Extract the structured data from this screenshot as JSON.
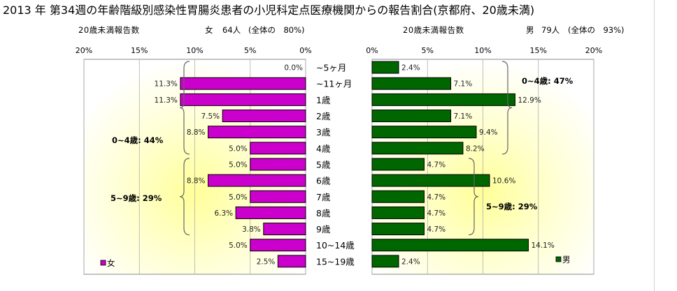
{
  "title": "2013 年 第34週の年齢階級別感染性胃腸炎患者の小児科定点医療機関からの報告割合(京都府、20歳未満)",
  "female_header": {
    "caption": "20歳未満報告数",
    "sex": "女",
    "count": "64人",
    "share": "(全体の　80%)"
  },
  "male_header": {
    "caption": "20歳未満報告数",
    "sex": "男",
    "count": "79人",
    "share": "(全体の　93%)"
  },
  "chart_data": [
    {
      "type": "bar",
      "orientation": "horizontal",
      "direction": "right-to-left",
      "categories": [
        "~5ヶ月",
        "~11ヶ月",
        "1歳",
        "2歳",
        "3歳",
        "4歳",
        "5歳",
        "6歳",
        "7歳",
        "8歳",
        "9歳",
        "10~14歳",
        "15~19歳"
      ],
      "series": [
        {
          "name": "女",
          "values": [
            0.0,
            11.3,
            11.3,
            7.5,
            8.8,
            5.0,
            5.0,
            8.8,
            5.0,
            6.3,
            3.8,
            5.0,
            2.5
          ],
          "labels": [
            "0.0%",
            "11.3%",
            "11.3%",
            "7.5%",
            "8.8%",
            "5.0%",
            "5.0%",
            "8.8%",
            "5.0%",
            "6.3%",
            "3.8%",
            "5.0%",
            "2.5%"
          ],
          "color": "#cc00cc"
        }
      ],
      "xlim": [
        0,
        20
      ],
      "ticks": [
        "20%",
        "15%",
        "10%",
        "5%",
        "0%"
      ],
      "grid": true,
      "legend": "bottom-left",
      "annotations": [
        "0~4歳: 44%",
        "5~9歳: 29%"
      ]
    },
    {
      "type": "bar",
      "orientation": "horizontal",
      "direction": "left-to-right",
      "categories": [
        "~5ヶ月",
        "~11ヶ月",
        "1歳",
        "2歳",
        "3歳",
        "4歳",
        "5歳",
        "6歳",
        "7歳",
        "8歳",
        "9歳",
        "10~14歳",
        "15~19歳"
      ],
      "series": [
        {
          "name": "男",
          "values": [
            2.4,
            7.1,
            12.9,
            7.1,
            9.4,
            8.2,
            4.7,
            10.6,
            4.7,
            4.7,
            4.7,
            14.1,
            2.4
          ],
          "labels": [
            "2.4%",
            "7.1%",
            "12.9%",
            "7.1%",
            "9.4%",
            "8.2%",
            "4.7%",
            "10.6%",
            "4.7%",
            "4.7%",
            "4.7%",
            "14.1%",
            "2.4%"
          ],
          "color": "#006600"
        }
      ],
      "xlim": [
        0,
        20
      ],
      "ticks": [
        "0%",
        "5%",
        "10%",
        "15%",
        "20%"
      ],
      "grid": true,
      "legend": "bottom-right",
      "annotations": [
        "0~4歳: 47%",
        "5~9歳: 29%"
      ]
    }
  ],
  "colors": {
    "female_bar": "#cc00cc",
    "male_bar": "#006600",
    "plot_glow": "#ffff99",
    "grid": "#b0b0b0"
  }
}
